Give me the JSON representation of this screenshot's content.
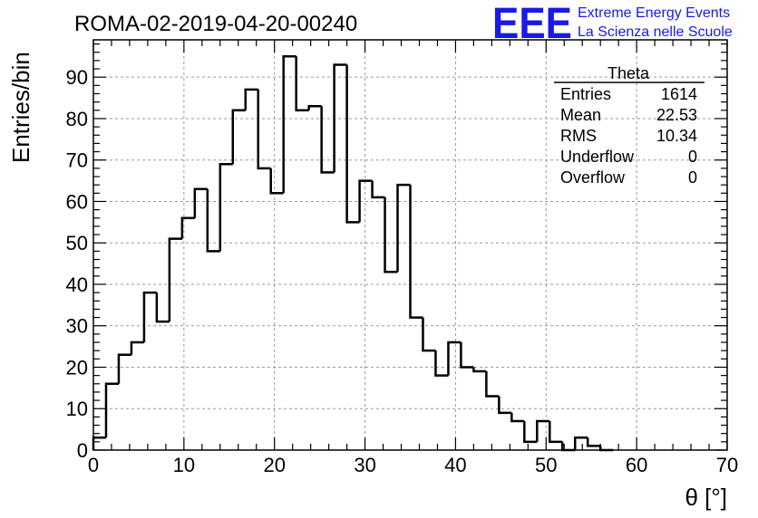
{
  "chart_data": {
    "type": "bar",
    "title": "ROMA-02-2019-04-20-00240",
    "xlabel": "θ [°]",
    "ylabel": "Entries/bin",
    "xlim": [
      0,
      70
    ],
    "ylim": [
      0,
      99
    ],
    "bin_width": 1.4,
    "x_ticks": [
      0,
      10,
      20,
      30,
      40,
      50,
      60,
      70
    ],
    "y_ticks": [
      0,
      10,
      20,
      30,
      40,
      50,
      60,
      70,
      80,
      90
    ],
    "grid": true,
    "bins": [
      {
        "x": 0.0,
        "y": 3
      },
      {
        "x": 1.4,
        "y": 16
      },
      {
        "x": 2.8,
        "y": 23
      },
      {
        "x": 4.2,
        "y": 26
      },
      {
        "x": 5.6,
        "y": 38
      },
      {
        "x": 7.0,
        "y": 31
      },
      {
        "x": 8.4,
        "y": 51
      },
      {
        "x": 9.8,
        "y": 56
      },
      {
        "x": 11.2,
        "y": 63
      },
      {
        "x": 12.6,
        "y": 48
      },
      {
        "x": 14.0,
        "y": 69
      },
      {
        "x": 15.4,
        "y": 82
      },
      {
        "x": 16.8,
        "y": 87
      },
      {
        "x": 18.2,
        "y": 68
      },
      {
        "x": 19.6,
        "y": 62
      },
      {
        "x": 21.0,
        "y": 95
      },
      {
        "x": 22.4,
        "y": 82
      },
      {
        "x": 23.8,
        "y": 83
      },
      {
        "x": 25.2,
        "y": 67
      },
      {
        "x": 26.6,
        "y": 93
      },
      {
        "x": 28.0,
        "y": 55
      },
      {
        "x": 29.4,
        "y": 65
      },
      {
        "x": 30.8,
        "y": 61
      },
      {
        "x": 32.2,
        "y": 43
      },
      {
        "x": 33.6,
        "y": 64
      },
      {
        "x": 35.0,
        "y": 32
      },
      {
        "x": 36.4,
        "y": 24
      },
      {
        "x": 37.8,
        "y": 18
      },
      {
        "x": 39.2,
        "y": 26
      },
      {
        "x": 40.6,
        "y": 20
      },
      {
        "x": 42.0,
        "y": 19
      },
      {
        "x": 43.4,
        "y": 13
      },
      {
        "x": 44.8,
        "y": 9
      },
      {
        "x": 46.2,
        "y": 7
      },
      {
        "x": 47.6,
        "y": 2
      },
      {
        "x": 49.0,
        "y": 7
      },
      {
        "x": 50.4,
        "y": 2
      },
      {
        "x": 51.8,
        "y": 0
      },
      {
        "x": 53.2,
        "y": 3
      },
      {
        "x": 54.6,
        "y": 1
      },
      {
        "x": 56.0,
        "y": 0
      }
    ],
    "stats": {
      "name": "Theta",
      "rows": [
        {
          "label": "Entries",
          "value": "1614"
        },
        {
          "label": "Mean",
          "value": "22.53"
        },
        {
          "label": "RMS",
          "value": "10.34"
        },
        {
          "label": "Underflow",
          "value": "0"
        },
        {
          "label": "Overflow",
          "value": "0"
        }
      ],
      "placement": "top-right"
    },
    "line_color": "#000000",
    "grid_color": "#9a9a9a"
  },
  "logo": {
    "mark": "EEE",
    "line1": "Extreme Energy Events",
    "line2": "La Scienza nelle Scuole",
    "color": "#1a1ae6"
  }
}
